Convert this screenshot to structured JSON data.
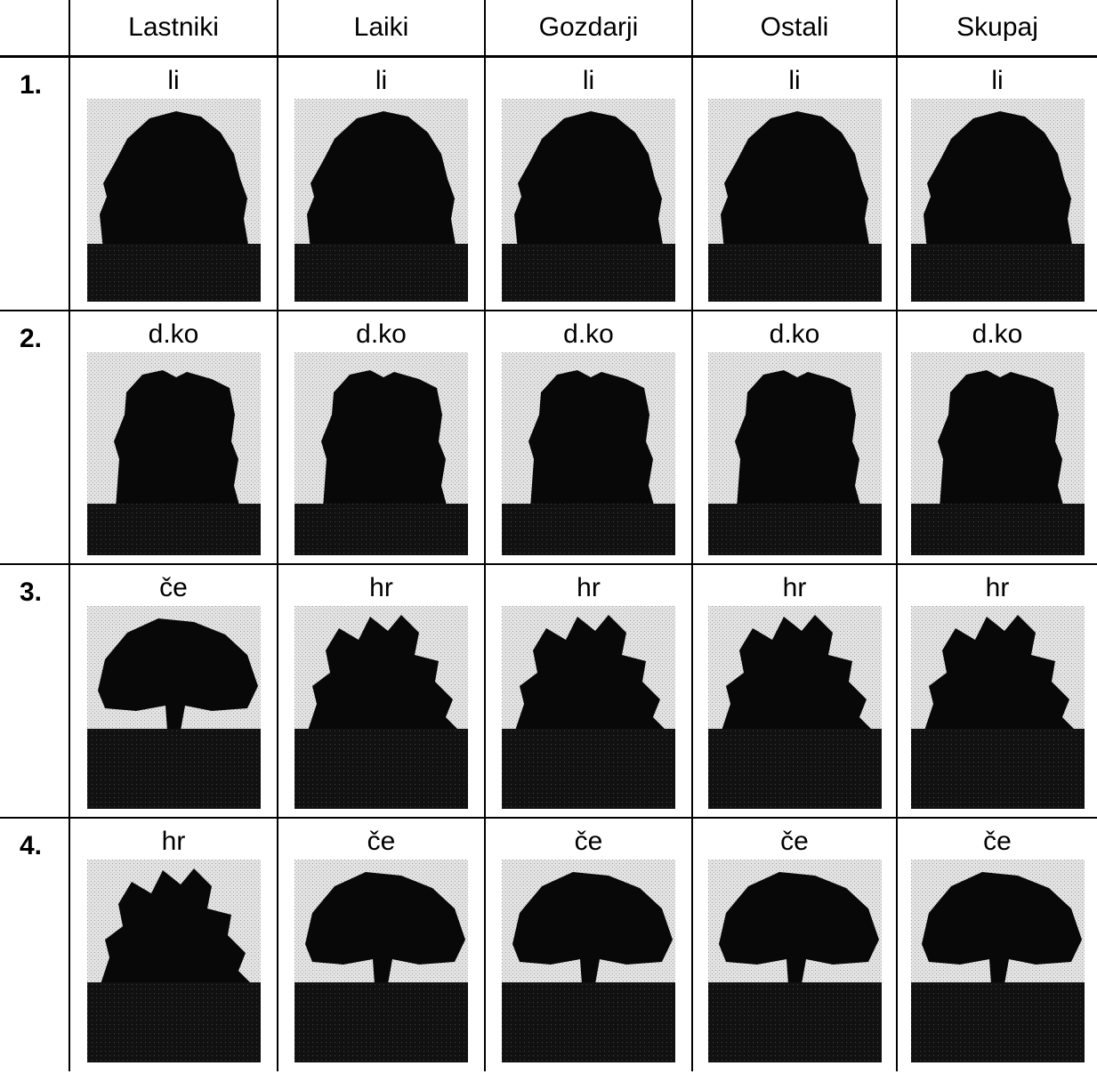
{
  "header": {
    "columns": [
      "Lastniki",
      "Laiki",
      "Gozdarji",
      "Ostali",
      "Skupaj"
    ]
  },
  "rows": [
    {
      "label": "1.",
      "cells": [
        "li",
        "li",
        "li",
        "li",
        "li"
      ]
    },
    {
      "label": "2.",
      "cells": [
        "d.ko",
        "d.ko",
        "d.ko",
        "d.ko",
        "d.ko"
      ]
    },
    {
      "label": "3.",
      "cells": [
        "če",
        "hr",
        "hr",
        "hr",
        "hr"
      ]
    },
    {
      "label": "4.",
      "cells": [
        "hr",
        "če",
        "če",
        "če",
        "če"
      ]
    }
  ]
}
